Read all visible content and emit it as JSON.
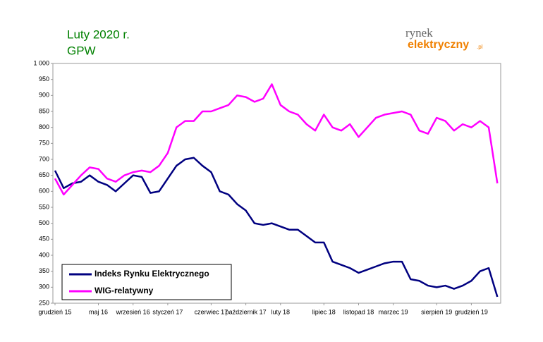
{
  "chart_data": {
    "type": "line",
    "title": "Luty 2020 r.",
    "subtitle": "GPW",
    "logo": {
      "top": "rynek",
      "bottom": "elektryczny",
      "suffix": ".pl"
    },
    "categories": [
      "grudzień 15",
      null,
      null,
      null,
      null,
      "maj 16",
      null,
      null,
      null,
      "wrzesień 16",
      null,
      null,
      null,
      "styczeń 17",
      null,
      null,
      null,
      null,
      "czerwiec 17",
      null,
      null,
      null,
      "październik 17",
      null,
      null,
      null,
      "luty 18",
      null,
      null,
      null,
      null,
      "lipiec 18",
      null,
      null,
      null,
      "listopad 18",
      null,
      null,
      null,
      "marzec 19",
      null,
      null,
      null,
      null,
      "sierpień 19",
      null,
      null,
      null,
      "grudzień 19",
      null,
      null,
      null
    ],
    "series": [
      {
        "name": "Indeks Rynku Elektrycznego",
        "color": "#000080",
        "values": [
          665,
          610,
          625,
          630,
          650,
          630,
          620,
          600,
          625,
          650,
          645,
          595,
          600,
          640,
          680,
          700,
          705,
          680,
          660,
          600,
          590,
          560,
          540,
          500,
          495,
          500,
          490,
          480,
          480,
          460,
          440,
          440,
          380,
          370,
          360,
          345,
          355,
          365,
          375,
          380,
          380,
          325,
          320,
          305,
          300,
          305,
          295,
          305,
          320,
          350,
          360,
          270
        ]
      },
      {
        "name": "WIG-relatywny",
        "color": "#ff00ff",
        "values": [
          640,
          590,
          620,
          650,
          675,
          670,
          640,
          630,
          650,
          660,
          665,
          660,
          680,
          720,
          800,
          820,
          820,
          850,
          850,
          860,
          870,
          900,
          895,
          880,
          890,
          935,
          870,
          850,
          840,
          810,
          790,
          840,
          800,
          790,
          810,
          770,
          800,
          830,
          840,
          845,
          850,
          840,
          790,
          780,
          830,
          820,
          790,
          810,
          800,
          820,
          800,
          625
        ]
      }
    ],
    "ylim": [
      250,
      1000
    ],
    "yticks": [
      250,
      300,
      350,
      400,
      450,
      500,
      550,
      600,
      650,
      700,
      750,
      800,
      850,
      900,
      950,
      {
        "value": 1000,
        "label": "1 000"
      }
    ],
    "grid": false,
    "legend": "bottom-left"
  }
}
